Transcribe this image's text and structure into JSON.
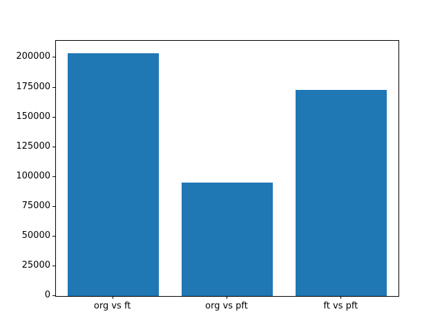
{
  "chart_data": {
    "type": "bar",
    "categories": [
      "org vs ft",
      "org vs pft",
      "ft vs pft"
    ],
    "values": [
      204000,
      95000,
      173000
    ],
    "title": "",
    "xlabel": "",
    "ylabel": "",
    "ylim": [
      0,
      214200
    ],
    "yticks": [
      0,
      25000,
      50000,
      75000,
      100000,
      125000,
      150000,
      175000,
      200000
    ],
    "bar_color": "#1f77b4",
    "grid": false,
    "legend": "none"
  }
}
